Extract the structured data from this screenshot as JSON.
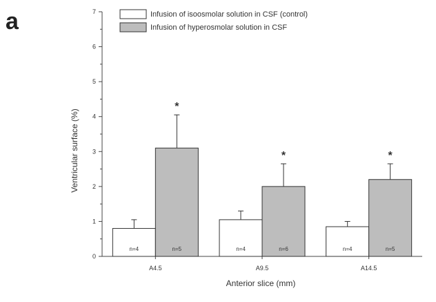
{
  "panel_label": "a",
  "chart_data": {
    "type": "bar",
    "categories": [
      "A4.5",
      "A9.5",
      "A14.5"
    ],
    "series": [
      {
        "name": "Infusion of isoosmolar solution in CSF (control)",
        "values": [
          0.8,
          1.05,
          0.85
        ],
        "errors": [
          0.25,
          0.25,
          0.15
        ],
        "n_labels": [
          "n=4",
          "n=4",
          "n=4"
        ],
        "significance": [
          "",
          "",
          ""
        ],
        "color": "#ffffff"
      },
      {
        "name": "Infusion of hyperosmolar solution in CSF",
        "values": [
          3.1,
          2.0,
          2.2
        ],
        "errors": [
          0.95,
          0.65,
          0.45
        ],
        "n_labels": [
          "n=5",
          "n=6",
          "n=5"
        ],
        "significance": [
          "*",
          "*",
          "*"
        ],
        "color": "#bdbdbd"
      }
    ],
    "xlabel": "Anterior slice (mm)",
    "ylabel": "Ventricular surface (%)",
    "ylim": [
      0,
      7
    ],
    "yticks": [
      0,
      1,
      2,
      3,
      4,
      5,
      6,
      7
    ],
    "legend_position": "top",
    "grid": false
  }
}
